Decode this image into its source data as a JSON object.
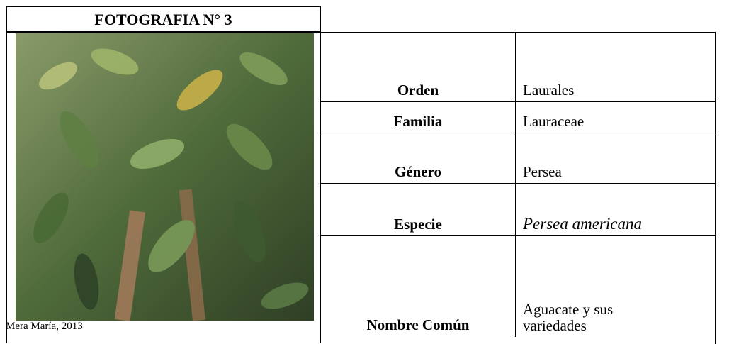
{
  "header": {
    "title": "FOTOGRAFIA N° 3"
  },
  "caption": "Mera María, 2013",
  "table": {
    "rows": [
      [
        "Orden",
        "Laurales"
      ],
      [
        "Familia",
        "Lauraceae"
      ],
      [
        "Género",
        "Persea"
      ],
      [
        "Especie",
        "Persea americana"
      ],
      [
        "Nombre Común",
        "Aguacate y sus variedades"
      ]
    ]
  }
}
